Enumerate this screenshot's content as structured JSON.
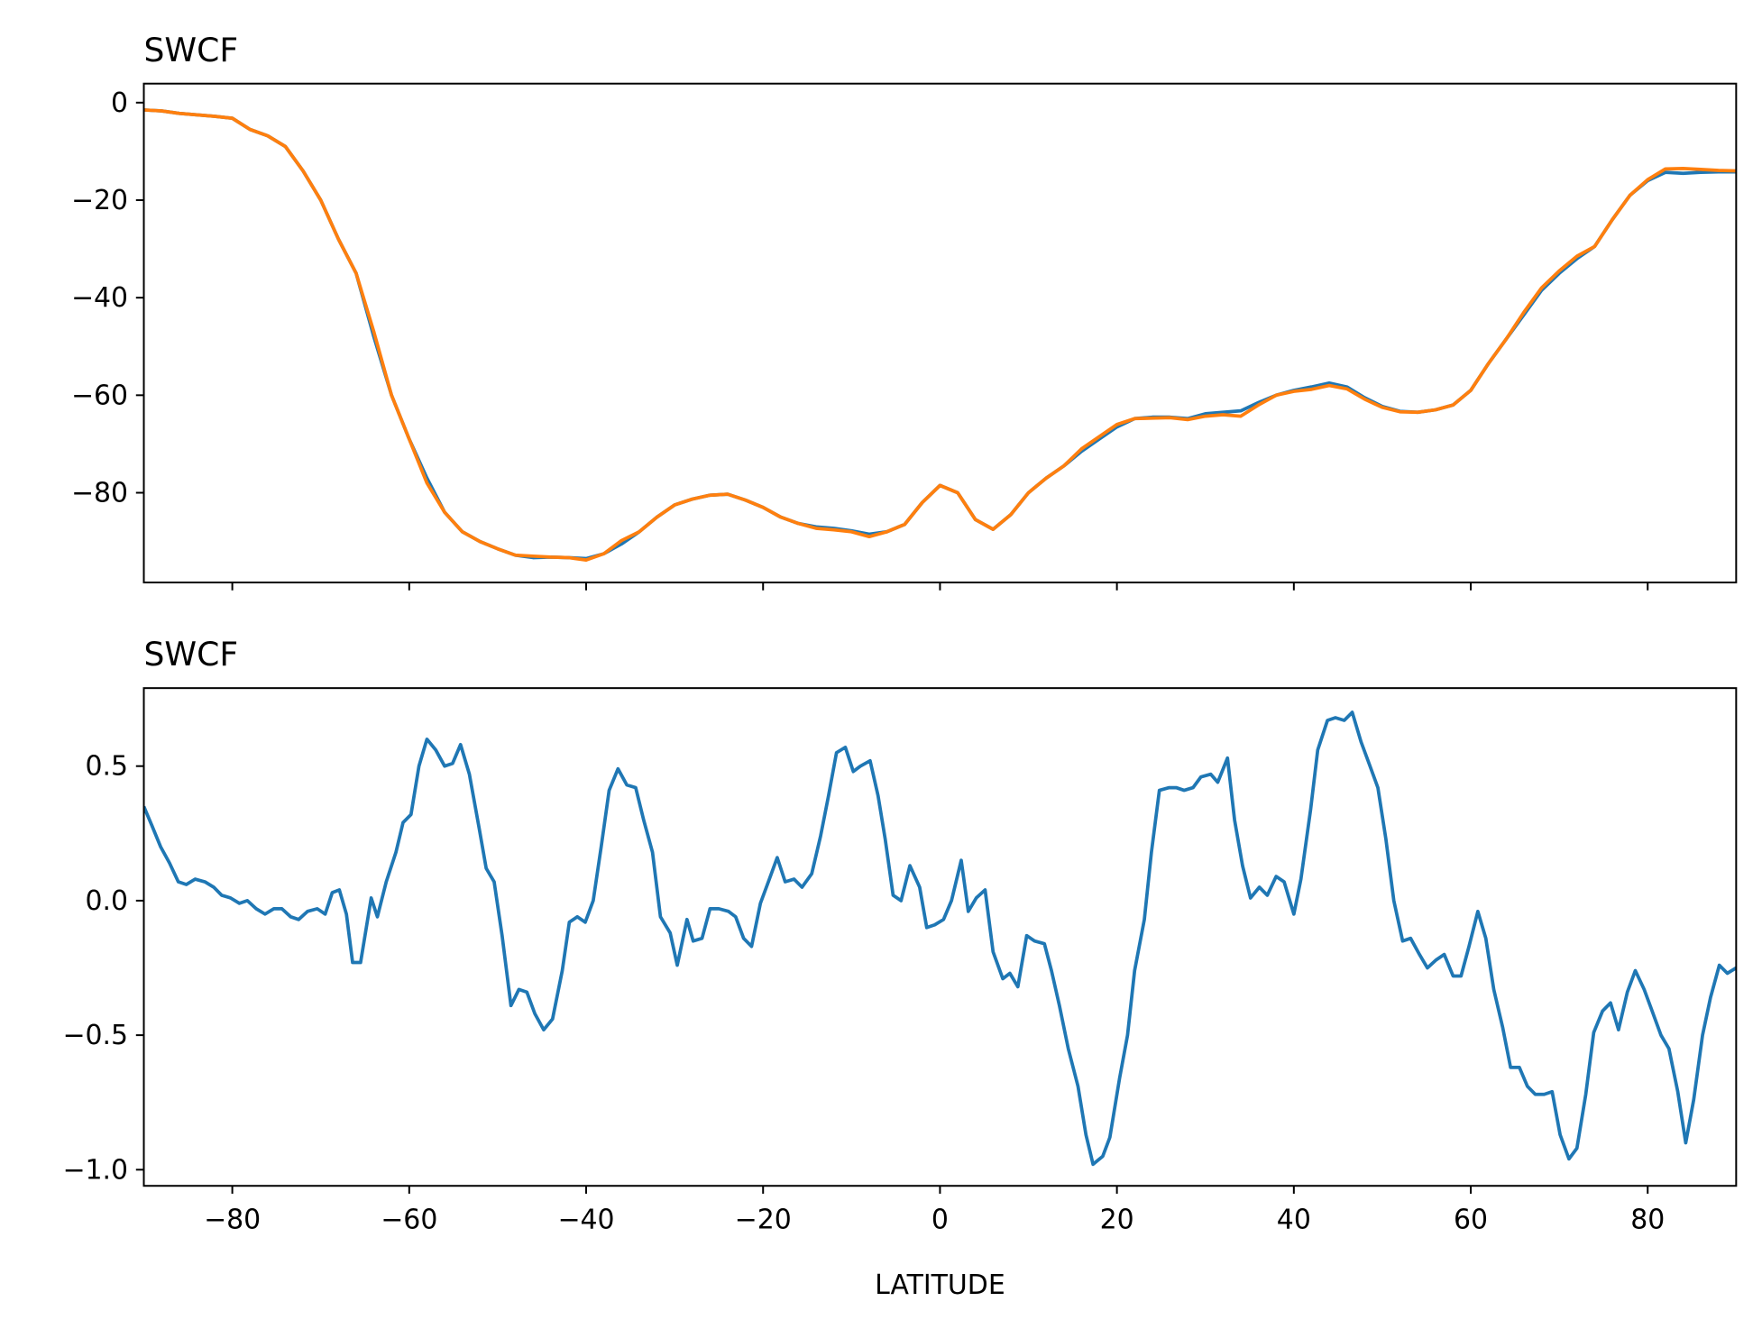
{
  "chart_data": [
    {
      "type": "line",
      "title": "SWCF",
      "x": [
        -90,
        -88,
        -86,
        -84,
        -82,
        -80,
        -78,
        -76,
        -74,
        -72,
        -70,
        -68,
        -66,
        -64,
        -62,
        -60,
        -58,
        -56,
        -54,
        -52,
        -50,
        -48,
        -46,
        -44,
        -42,
        -40,
        -38,
        -36,
        -34,
        -32,
        -30,
        -28,
        -26,
        -24,
        -22,
        -20,
        -18,
        -16,
        -14,
        -12,
        -10,
        -8,
        -6,
        -4,
        -2,
        0,
        2,
        4,
        6,
        8,
        10,
        12,
        14,
        16,
        18,
        20,
        22,
        24,
        26,
        28,
        30,
        32,
        34,
        36,
        38,
        40,
        42,
        44,
        46,
        48,
        50,
        52,
        54,
        56,
        58,
        60,
        62,
        64,
        66,
        68,
        70,
        72,
        74,
        76,
        78,
        80,
        82,
        84,
        86,
        88,
        90
      ],
      "series": [
        {
          "color": "#1f77b4",
          "values": [
            -1.5,
            -1.7,
            -2.2,
            -2.5,
            -2.8,
            -3.2,
            -5.5,
            -6.8,
            -9,
            -14,
            -20,
            -28,
            -35,
            -48,
            -60,
            -69,
            -77,
            -84,
            -88,
            -90,
            -91.5,
            -92.8,
            -93.3,
            -93.2,
            -93.3,
            -93.5,
            -92.5,
            -90.5,
            -88,
            -85,
            -82.5,
            -81.3,
            -80.5,
            -80.3,
            -81.5,
            -83,
            -85,
            -86.3,
            -87,
            -87.3,
            -87.8,
            -88.5,
            -88,
            -86.5,
            -82,
            -78.5,
            -80,
            -85.5,
            -87.5,
            -84.5,
            -80,
            -77,
            -74.5,
            -71.5,
            -69,
            -66.5,
            -64.8,
            -64.5,
            -64.5,
            -64.8,
            -63.8,
            -63.5,
            -63.2,
            -61.5,
            -60,
            -59,
            -58.3,
            -57.5,
            -58.3,
            -60.5,
            -62.3,
            -63.3,
            -63.5,
            -63,
            -62,
            -59,
            -53.5,
            -48.5,
            -43.5,
            -38.5,
            -35,
            -32,
            -29.5,
            -24,
            -19,
            -16,
            -14.3,
            -14.5,
            -14.3,
            -14.2,
            -14.2
          ]
        },
        {
          "color": "#ff7f0e",
          "values": [
            -1.5,
            -1.7,
            -2.2,
            -2.5,
            -2.8,
            -3.2,
            -5.5,
            -6.8,
            -9,
            -14,
            -20,
            -28,
            -35,
            -47,
            -60,
            -69,
            -78,
            -84,
            -88,
            -90,
            -91.5,
            -92.8,
            -93,
            -93.2,
            -93.3,
            -93.8,
            -92.5,
            -89.8,
            -88,
            -85,
            -82.5,
            -81.3,
            -80.5,
            -80.3,
            -81.5,
            -83,
            -85,
            -86.3,
            -87.3,
            -87.6,
            -88,
            -89,
            -88,
            -86.5,
            -82,
            -78.5,
            -80,
            -85.5,
            -87.5,
            -84.5,
            -80,
            -77,
            -74.5,
            -71,
            -68.5,
            -66,
            -64.8,
            -64.7,
            -64.6,
            -65,
            -64.3,
            -64,
            -64.3,
            -62,
            -60,
            -59.2,
            -58.8,
            -58,
            -58.7,
            -60.8,
            -62.5,
            -63.4,
            -63.5,
            -63,
            -62,
            -59,
            -53.5,
            -48.5,
            -43,
            -38,
            -34.5,
            -31.5,
            -29.5,
            -24,
            -19,
            -15.8,
            -13.6,
            -13.5,
            -13.7,
            -13.9,
            -14
          ]
        }
      ],
      "xlim": [
        -90,
        90
      ],
      "ylim": [
        -98.4,
        3.9
      ],
      "yticks": [
        0,
        {
          "value": -20,
          "label": "−20"
        },
        {
          "value": -40,
          "label": "−40"
        },
        {
          "value": -60,
          "label": "−60"
        },
        {
          "value": -80,
          "label": "−80"
        }
      ]
    },
    {
      "type": "line",
      "title": "SWCF",
      "x_label": "LATITUDE",
      "x": [
        -90,
        -89.1,
        -88.1,
        -87.1,
        -86.1,
        -85.2,
        -84.2,
        -83.1,
        -82.1,
        -81.2,
        -80.2,
        -79.2,
        -78.3,
        -77.3,
        -76.3,
        -75.3,
        -74.4,
        -73.4,
        -72.5,
        -71.5,
        -70.4,
        -69.5,
        -68.7,
        -67.9,
        -67.1,
        -66.4,
        -65.5,
        -64.3,
        -63.6,
        -62.6,
        -61.5,
        -60.7,
        -59.8,
        -58.9,
        -58.0,
        -57.0,
        -56.0,
        -55.1,
        -54.2,
        -53.2,
        -52.1,
        -51.3,
        -50.4,
        -49.5,
        -48.5,
        -47.6,
        -46.7,
        -45.8,
        -44.8,
        -43.8,
        -42.7,
        -41.9,
        -41.0,
        -40.1,
        -39.2,
        -38.3,
        -37.4,
        -36.4,
        -35.4,
        -34.4,
        -33.5,
        -32.5,
        -31.6,
        -30.5,
        -29.7,
        -28.6,
        -27.9,
        -26.9,
        -26.0,
        -25.0,
        -23.9,
        -23.1,
        -22.2,
        -21.3,
        -20.3,
        -19.4,
        -18.4,
        -17.5,
        -16.5,
        -15.6,
        -14.5,
        -13.5,
        -12.6,
        -11.7,
        -10.7,
        -9.8,
        -9.0,
        -7.9,
        -7.0,
        -6.2,
        -5.3,
        -4.4,
        -3.4,
        -2.3,
        -1.5,
        -0.6,
        0.4,
        1.3,
        2.4,
        3.2,
        4.1,
        5.1,
        6.0,
        7.1,
        7.9,
        8.8,
        9.8,
        10.7,
        11.8,
        12.6,
        13.5,
        14.5,
        15.6,
        16.5,
        17.3,
        18.4,
        19.2,
        20.3,
        21.2,
        22.0,
        23.1,
        23.9,
        24.8,
        25.9,
        26.7,
        27.6,
        28.6,
        29.5,
        30.6,
        31.4,
        32.5,
        33.3,
        34.2,
        35.1,
        36.1,
        37.0,
        38.0,
        38.9,
        40.0,
        40.8,
        41.9,
        42.7,
        43.8,
        44.7,
        45.7,
        46.6,
        47.6,
        48.5,
        49.5,
        50.4,
        51.3,
        52.3,
        53.2,
        54.2,
        55.1,
        56.1,
        57.0,
        58.0,
        58.9,
        59.8,
        60.8,
        61.7,
        62.6,
        63.6,
        64.5,
        65.5,
        66.4,
        67.3,
        68.3,
        69.2,
        70.1,
        71.1,
        72.0,
        73.0,
        73.9,
        74.9,
        75.8,
        76.7,
        77.7,
        78.6,
        79.6,
        80.5,
        81.5,
        82.4,
        83.4,
        84.3,
        85.2,
        86.2,
        87.1,
        88.1,
        89.0,
        90.0
      ],
      "series": [
        {
          "color": "#1f77b4",
          "values": [
            0.35,
            0.28,
            0.2,
            0.14,
            0.07,
            0.06,
            0.08,
            0.07,
            0.05,
            0.02,
            0.01,
            -0.01,
            0.0,
            -0.03,
            -0.05,
            -0.03,
            -0.03,
            -0.06,
            -0.07,
            -0.04,
            -0.03,
            -0.05,
            0.03,
            0.04,
            -0.05,
            -0.23,
            -0.23,
            0.01,
            -0.06,
            0.07,
            0.18,
            0.29,
            0.32,
            0.5,
            0.6,
            0.56,
            0.5,
            0.51,
            0.58,
            0.47,
            0.27,
            0.12,
            0.07,
            -0.13,
            -0.39,
            -0.33,
            -0.34,
            -0.42,
            -0.48,
            -0.44,
            -0.26,
            -0.08,
            -0.06,
            -0.08,
            0.0,
            0.2,
            0.41,
            0.49,
            0.43,
            0.42,
            0.3,
            0.18,
            -0.06,
            -0.12,
            -0.24,
            -0.07,
            -0.15,
            -0.14,
            -0.03,
            -0.03,
            -0.04,
            -0.06,
            -0.14,
            -0.17,
            -0.01,
            0.07,
            0.16,
            0.07,
            0.08,
            0.05,
            0.1,
            0.24,
            0.39,
            0.55,
            0.57,
            0.48,
            0.5,
            0.52,
            0.39,
            0.23,
            0.02,
            0.0,
            0.13,
            0.05,
            -0.1,
            -0.09,
            -0.07,
            0.0,
            0.15,
            -0.04,
            0.01,
            0.04,
            -0.19,
            -0.29,
            -0.27,
            -0.32,
            -0.13,
            -0.15,
            -0.16,
            -0.26,
            -0.39,
            -0.55,
            -0.69,
            -0.87,
            -0.98,
            -0.95,
            -0.88,
            -0.66,
            -0.5,
            -0.26,
            -0.07,
            0.18,
            0.41,
            0.42,
            0.42,
            0.41,
            0.42,
            0.46,
            0.47,
            0.44,
            0.53,
            0.3,
            0.13,
            0.01,
            0.05,
            0.02,
            0.09,
            0.07,
            -0.05,
            0.08,
            0.34,
            0.56,
            0.67,
            0.68,
            0.67,
            0.7,
            0.59,
            0.51,
            0.42,
            0.23,
            0.0,
            -0.15,
            -0.14,
            -0.2,
            -0.25,
            -0.22,
            -0.2,
            -0.28,
            -0.28,
            -0.17,
            -0.04,
            -0.14,
            -0.33,
            -0.47,
            -0.62,
            -0.62,
            -0.69,
            -0.72,
            -0.72,
            -0.71,
            -0.87,
            -0.96,
            -0.92,
            -0.72,
            -0.49,
            -0.41,
            -0.38,
            -0.48,
            -0.34,
            -0.26,
            -0.33,
            -0.41,
            -0.5,
            -0.55,
            -0.71,
            -0.9,
            -0.74,
            -0.5,
            -0.36,
            -0.24,
            -0.27,
            -0.25
          ]
        }
      ],
      "xlim": [
        -90,
        90
      ],
      "ylim": [
        -1.06,
        0.79
      ],
      "xticks": [
        {
          "value": -80,
          "label": "−80"
        },
        {
          "value": -60,
          "label": "−60"
        },
        {
          "value": -40,
          "label": "−40"
        },
        {
          "value": -20,
          "label": "−20"
        },
        0,
        20,
        40,
        60,
        80
      ],
      "yticks": [
        0.5,
        {
          "value": 0,
          "label": "0.0"
        },
        {
          "value": -0.5,
          "label": "−0.5"
        },
        {
          "value": -1,
          "label": "−1.0"
        }
      ]
    }
  ]
}
